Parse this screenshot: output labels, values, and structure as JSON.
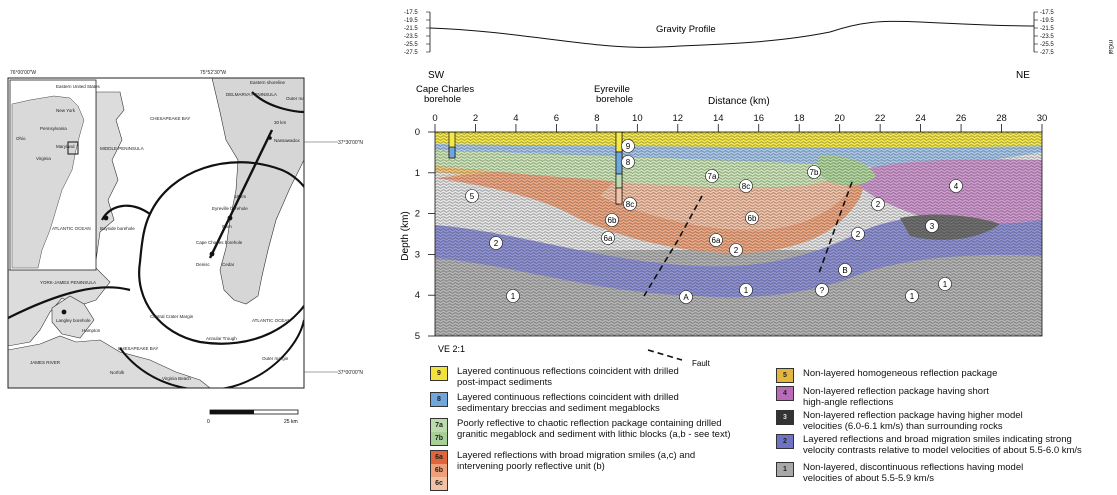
{
  "map": {
    "coords_top": [
      "76°00'00\"W",
      "75°52'30\"W"
    ],
    "coords_right": [
      "37°30'00\"N",
      "37°00'00\"N"
    ],
    "inset_title": "Eastern United States",
    "inset_states": [
      "New York",
      "Pennsylvania",
      "Maryland",
      "Virginia",
      "Ohio"
    ],
    "inset_ocean": "ATLANTIC OCEAN",
    "labels": {
      "eastern_shore": "Eastern shoreline",
      "delmarva": "DELMARVA PENINSULA",
      "outer_margin_top": "Outer margin",
      "chesapeake_bay_top": "CHESAPEAKE BAY",
      "middle_peninsula": "MIDDLE PENINSULA",
      "bayside": "Bayside borehole",
      "york_james": "YORK-JAMES PENINSULA",
      "langley": "Langley borehole",
      "hampton": "Hampton",
      "central_crater": "Central Crater Margin",
      "chesapeake_bay_bottom": "CHESAPEAKE BAY",
      "norfolk": "Norfolk",
      "virginia_beach": "Virginia Beach",
      "james_river": "JAMES RIVER",
      "annular_trough": "Annular Trough",
      "atlantic": "ATLANTIC OCEAN",
      "outer_margin_bottom": "Outer margin",
      "nassawadox": "Nassawadox",
      "eyreville": "Eyreville borehole",
      "cape_charles": "Cape Charles borehole",
      "denisc": "Denisc",
      "cedar": "Cedar",
      "km30": "30 km",
      "km18": "18 km",
      "km9": "9 km",
      "scale_km": "25 km"
    }
  },
  "profile": {
    "gravity_title": "Gravity Profile",
    "gravity_ticks": [
      "-17.5",
      "-19.5",
      "-21.5",
      "-23.5",
      "-25.5",
      "-27.5"
    ],
    "gravity_unit": "mGal",
    "sw": "SW",
    "ne": "NE",
    "cape_charles": "Cape Charles\nborehole",
    "eyreville": "Eyreville\nborehole",
    "distance_label": "Distance (km)",
    "x_ticks": [
      "0",
      "2",
      "4",
      "6",
      "8",
      "10",
      "12",
      "14",
      "16",
      "18",
      "20",
      "22",
      "24",
      "26",
      "28",
      "30"
    ],
    "depth_label": "Depth (km)",
    "y_ticks": [
      "0",
      "1",
      "2",
      "3",
      "4",
      "5"
    ],
    "ve": "VE 2:1",
    "fault_label": "Fault",
    "unit_labels": [
      "9",
      "8",
      "7a",
      "7b",
      "8c",
      "5",
      "6b",
      "6b",
      "6a",
      "6a",
      "2",
      "2",
      "2",
      "2",
      "4",
      "3",
      "B",
      "A",
      "?",
      "1",
      "1",
      "1",
      "1",
      "8c"
    ]
  },
  "legend": {
    "left": [
      {
        "codes": [
          "9"
        ],
        "colors": [
          "#f2e23c"
        ],
        "text": "Layered continuous reflections coincident with drilled\npost-impact sediments"
      },
      {
        "codes": [
          "8"
        ],
        "colors": [
          "#6fa6dc"
        ],
        "text": "Layered continuous reflections coincident with drilled\nsedimentary breccias and sediment megablocks"
      },
      {
        "codes": [
          "7a",
          "7b"
        ],
        "colors": [
          "#bcdcae",
          "#a7cf98"
        ],
        "text": "Poorly reflective to chaotic reflection package containing drilled\ngranitic megablock and sediment with lithic blocks (a,b - see text)"
      },
      {
        "codes": [
          "6a",
          "6b",
          "6c"
        ],
        "colors": [
          "#e0643c",
          "#eea07a",
          "#f3c2a4"
        ],
        "text": "Layered reflections with broad migration smiles (a,c) and\nintervening poorly reflective unit (b)"
      }
    ],
    "right": [
      {
        "codes": [
          "5"
        ],
        "colors": [
          "#e3b640"
        ],
        "text": "Non-layered homogeneous reflection package"
      },
      {
        "codes": [
          "4"
        ],
        "colors": [
          "#b86bb6"
        ],
        "text": "Non-layered reflection package having short\nhigh-angle reflections"
      },
      {
        "codes": [
          "3"
        ],
        "colors": [
          "#333333"
        ],
        "text": "Non-layered reflection package having higher model\nvelocities (6.0-6.1 km/s) than surrounding rocks"
      },
      {
        "codes": [
          "2"
        ],
        "colors": [
          "#6f73c4"
        ],
        "text": "Layered reflections and broad migration smiles indicating strong\nvelocity contrasts relative to model velocities of about 5.5-6.0 km/s"
      },
      {
        "codes": [
          "1"
        ],
        "colors": [
          "#a8a8a8"
        ],
        "text": "Non-layered, discontinuous reflections having model\nvelocities of about 5.5-5.9 km/s"
      }
    ]
  },
  "colors": {
    "water": "#ffffff",
    "land": "#d9d9d9",
    "shore": "#222222"
  }
}
